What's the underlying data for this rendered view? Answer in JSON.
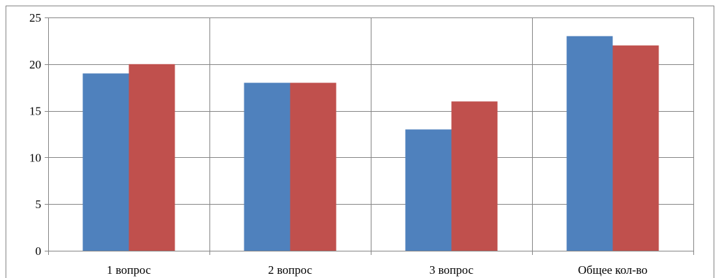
{
  "chart_data": {
    "type": "bar",
    "categories": [
      "1 вопрос",
      "2 вопрос",
      "3 вопрос",
      "Общее кол-во"
    ],
    "series": [
      {
        "values": [
          19,
          18,
          13,
          23
        ],
        "color": "#4F81BD"
      },
      {
        "values": [
          20,
          18,
          16,
          22
        ],
        "color": "#C0504D"
      }
    ],
    "ylim": [
      0,
      25
    ],
    "yticks": [
      0,
      5,
      10,
      15,
      20,
      25
    ],
    "grid": true,
    "legend": "none"
  },
  "colors": {
    "grid": "#868686",
    "axis": "#868686",
    "frame": "#868686"
  }
}
